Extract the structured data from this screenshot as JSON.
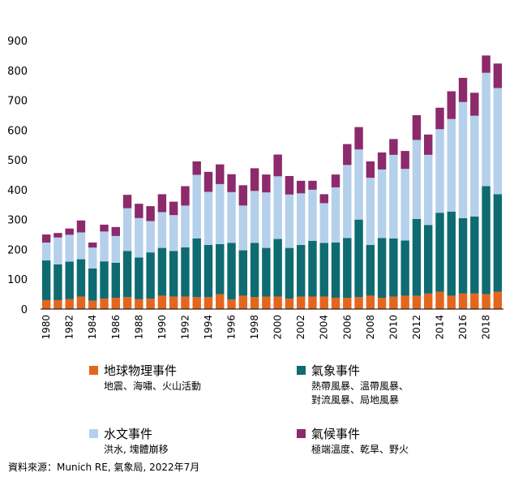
{
  "colors": {
    "geophysical": "#E4661E",
    "meteorological": "#0E6B72",
    "hydrological": "#B5D0EB",
    "climatological": "#8C2A6B"
  },
  "chart_data": {
    "type": "bar",
    "stacked": true,
    "ylim": [
      0,
      900
    ],
    "yticks": [
      "0",
      "100",
      "200",
      "300",
      "400",
      "500",
      "600",
      "700",
      "800",
      "900"
    ],
    "categories": [
      1980,
      1981,
      1982,
      1983,
      1984,
      1985,
      1986,
      1987,
      1988,
      1989,
      1990,
      1991,
      1992,
      1993,
      1994,
      1995,
      1996,
      1997,
      1998,
      1999,
      2000,
      2001,
      2002,
      2003,
      2004,
      2005,
      2006,
      2007,
      2008,
      2009,
      2010,
      2011,
      2012,
      2013,
      2014,
      2015,
      2016,
      2017,
      2018,
      2019
    ],
    "xtick_labels": [
      "1980",
      "",
      "1982",
      "",
      "1984",
      "",
      "1986",
      "",
      "1988",
      "",
      "1990",
      "",
      "1992",
      "",
      "1994",
      "",
      "1996",
      "",
      "1998",
      "",
      "2000",
      "",
      "2002",
      "",
      "2004",
      "",
      "2006",
      "",
      "2008",
      "",
      "2010",
      "",
      "2012",
      "",
      "2014",
      "",
      "2016",
      "",
      "2018",
      ""
    ],
    "grid": false,
    "series": [
      {
        "name": "地球物理事件",
        "color_key": "geophysical",
        "values": [
          30,
          30,
          33,
          42,
          28,
          35,
          38,
          40,
          33,
          35,
          45,
          42,
          42,
          40,
          40,
          50,
          32,
          45,
          40,
          42,
          42,
          35,
          42,
          42,
          42,
          38,
          38,
          40,
          45,
          38,
          42,
          45,
          45,
          52,
          58,
          45,
          52,
          52,
          50,
          58
        ]
      },
      {
        "name": "氣象事件",
        "color_key": "meteorological",
        "values": [
          133,
          120,
          126,
          125,
          108,
          125,
          117,
          155,
          140,
          155,
          160,
          153,
          165,
          197,
          175,
          168,
          190,
          152,
          182,
          163,
          193,
          170,
          173,
          187,
          180,
          185,
          200,
          260,
          170,
          200,
          195,
          185,
          257,
          230,
          265,
          282,
          253,
          258,
          362,
          327
        ]
      },
      {
        "name": "水文事件",
        "color_key": "hydrological",
        "values": [
          60,
          90,
          90,
          90,
          70,
          100,
          90,
          143,
          132,
          105,
          120,
          120,
          140,
          213,
          178,
          201,
          170,
          150,
          174,
          186,
          210,
          179,
          173,
          171,
          133,
          185,
          245,
          235,
          225,
          230,
          280,
          240,
          265,
          235,
          280,
          310,
          389,
          338,
          380,
          356
        ]
      },
      {
        "name": "氣候事件",
        "color_key": "climatological",
        "values": [
          27,
          15,
          21,
          40,
          17,
          23,
          30,
          45,
          48,
          50,
          60,
          45,
          65,
          45,
          67,
          66,
          60,
          68,
          76,
          60,
          73,
          62,
          42,
          30,
          30,
          43,
          70,
          75,
          55,
          57,
          53,
          60,
          83,
          68,
          72,
          93,
          81,
          77,
          58,
          82
        ]
      }
    ]
  },
  "legend": [
    {
      "title": "地球物理事件",
      "desc": [
        "地震、海嘯、火山活動"
      ],
      "color_key": "geophysical"
    },
    {
      "title": "氣象事件",
      "desc": [
        "熱帶風暴、溫帶風暴、",
        "對流風暴、局地風暴"
      ],
      "color_key": "meteorological"
    },
    {
      "title": "水文事件",
      "desc": [
        "洪水, 塊體崩移"
      ],
      "color_key": "hydrological"
    },
    {
      "title": "氣候事件",
      "desc": [
        "極端溫度、乾旱、野火"
      ],
      "color_key": "climatological"
    }
  ],
  "source": "資料來源：Munich RE, 氣象局, 2022年7月"
}
